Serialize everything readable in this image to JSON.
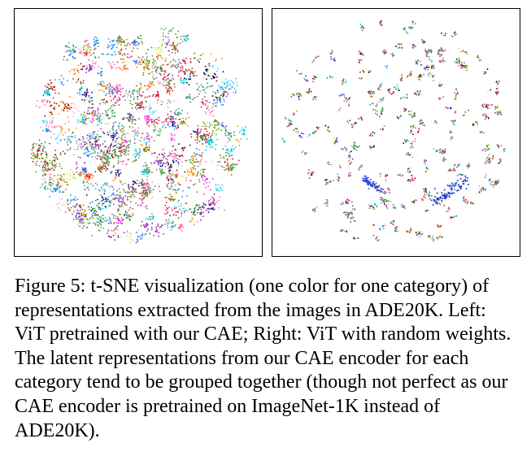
{
  "figure": {
    "caption": "Figure 5: t-SNE visualization (one color for one category) of representations extracted from the images in ADE20K. Left: ViT pretrained with our CAE; Right: ViT with random weights. The latent representations from our CAE encoder for each category tend to be grouped together (though not perfect as our CAE encoder is pretrained on ImageNet-1K instead of ADE20K)."
  },
  "chart_data": [
    {
      "type": "scatter",
      "panel": "left",
      "distribution": "clustered",
      "grid": false,
      "legend": "none"
    },
    {
      "type": "scatter",
      "panel": "right",
      "distribution": "mixed",
      "grid": false,
      "legend": "none"
    }
  ],
  "palette": [
    "#e6194b",
    "#3cb44b",
    "#4363d8",
    "#f58231",
    "#911eb4",
    "#42d4f4",
    "#f032e6",
    "#bfef45",
    "#fabed4",
    "#469990",
    "#9a6324",
    "#800000",
    "#808000",
    "#000075",
    "#a9a9a9",
    "#2e8b57",
    "#ff69b4",
    "#1e90ff",
    "#8b4513",
    "#228b22",
    "#dc143c",
    "#20b2aa",
    "#9932cc",
    "#ff8c00",
    "#00ced1",
    "#6b8e23"
  ]
}
